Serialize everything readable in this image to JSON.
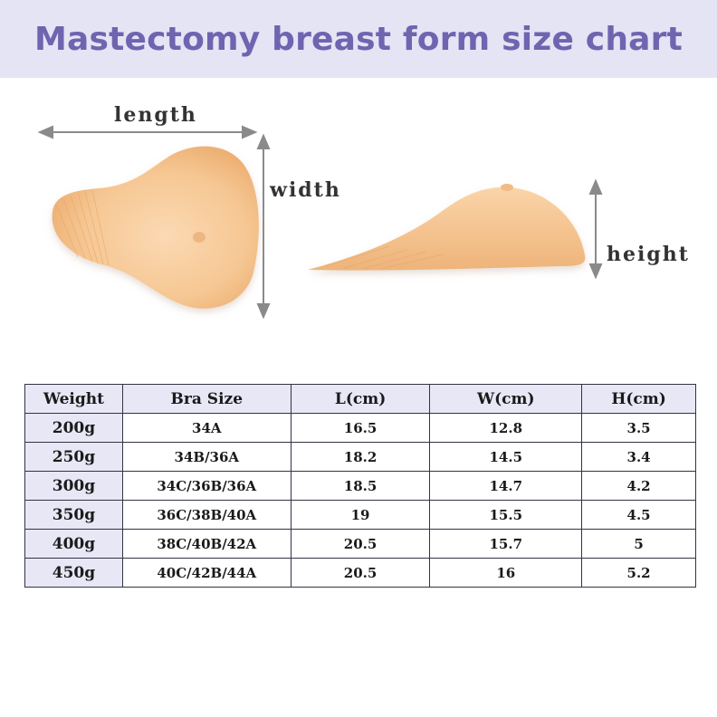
{
  "title": "Mastectomy breast form size chart",
  "diagram": {
    "length_label": "length",
    "width_label": "width",
    "height_label": "height"
  },
  "table": {
    "headers": [
      "Weight",
      "Bra Size",
      "L(cm)",
      "W(cm)",
      "H(cm)"
    ],
    "rows": [
      [
        "200g",
        "34A",
        "16.5",
        "12.8",
        "3.5"
      ],
      [
        "250g",
        "34B/36A",
        "18.2",
        "14.5",
        "3.4"
      ],
      [
        "300g",
        "34C/36B/36A",
        "18.5",
        "14.7",
        "4.2"
      ],
      [
        "350g",
        "36C/38B/40A",
        "19",
        "15.5",
        "4.5"
      ],
      [
        "400g",
        "38C/40B/42A",
        "20.5",
        "15.7",
        "5"
      ],
      [
        "450g",
        "40C/42B/44A",
        "20.5",
        "16",
        "5.2"
      ]
    ]
  },
  "colors": {
    "banner_bg": "#e4e4f4",
    "title_color": "#6f64b0",
    "header_bg": "#e7e7f6",
    "skin": "#f4c28f"
  }
}
